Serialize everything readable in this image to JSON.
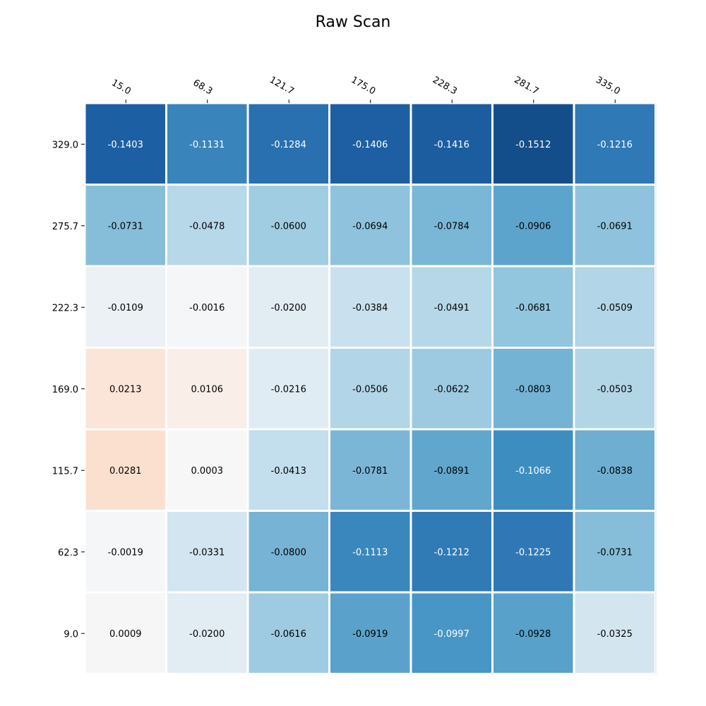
{
  "chart_data": {
    "type": "heatmap",
    "title": "Raw Scan",
    "xlabel": "",
    "ylabel": "",
    "x_ticks": [
      "15.0",
      "68.3",
      "121.7",
      "175.0",
      "228.3",
      "281.7",
      "335.0"
    ],
    "y_ticks": [
      "329.0",
      "275.7",
      "222.3",
      "169.0",
      "115.7",
      "62.3",
      "9.0"
    ],
    "values": [
      [
        -0.1403,
        -0.1131,
        -0.1284,
        -0.1406,
        -0.1416,
        -0.1512,
        -0.1216
      ],
      [
        -0.0731,
        -0.0478,
        -0.06,
        -0.0694,
        -0.0784,
        -0.0906,
        -0.0691
      ],
      [
        -0.0109,
        -0.0016,
        -0.02,
        -0.0384,
        -0.0491,
        -0.0681,
        -0.0509
      ],
      [
        0.0213,
        0.0106,
        -0.0216,
        -0.0506,
        -0.0622,
        -0.0803,
        -0.0503
      ],
      [
        0.0281,
        0.0003,
        -0.0413,
        -0.0781,
        -0.0891,
        -0.1066,
        -0.0838
      ],
      [
        -0.0019,
        -0.0331,
        -0.08,
        -0.1113,
        -0.1212,
        -0.1225,
        -0.0731
      ],
      [
        0.0009,
        -0.02,
        -0.0616,
        -0.0919,
        -0.0997,
        -0.0928,
        -0.0325
      ]
    ],
    "labels": [
      [
        "-0.1403",
        "-0.1131",
        "-0.1284",
        "-0.1406",
        "-0.1416",
        "-0.1512",
        "-0.1216"
      ],
      [
        "-0.0731",
        "-0.0478",
        "-0.0600",
        "-0.0694",
        "-0.0784",
        "-0.0906",
        "-0.0691"
      ],
      [
        "-0.0109",
        "-0.0016",
        "-0.0200",
        "-0.0384",
        "-0.0491",
        "-0.0681",
        "-0.0509"
      ],
      [
        "0.0213",
        "0.0106",
        "-0.0216",
        "-0.0506",
        "-0.0622",
        "-0.0803",
        "-0.0503"
      ],
      [
        "0.0281",
        "0.0003",
        "-0.0413",
        "-0.0781",
        "-0.0891",
        "-0.1066",
        "-0.0838"
      ],
      [
        "-0.0019",
        "-0.0331",
        "-0.0800",
        "-0.1113",
        "-0.1212",
        "-0.1225",
        "-0.0731"
      ],
      [
        "0.0009",
        "-0.0200",
        "-0.0616",
        "-0.0919",
        "-0.0997",
        "-0.0928",
        "-0.0325"
      ]
    ],
    "colormap": "RdBu_r",
    "vmin": -0.17,
    "vmax": 0.17,
    "x_tick_position": "top",
    "grid": false,
    "colors": {
      "cell_border": "#ffffff"
    }
  }
}
